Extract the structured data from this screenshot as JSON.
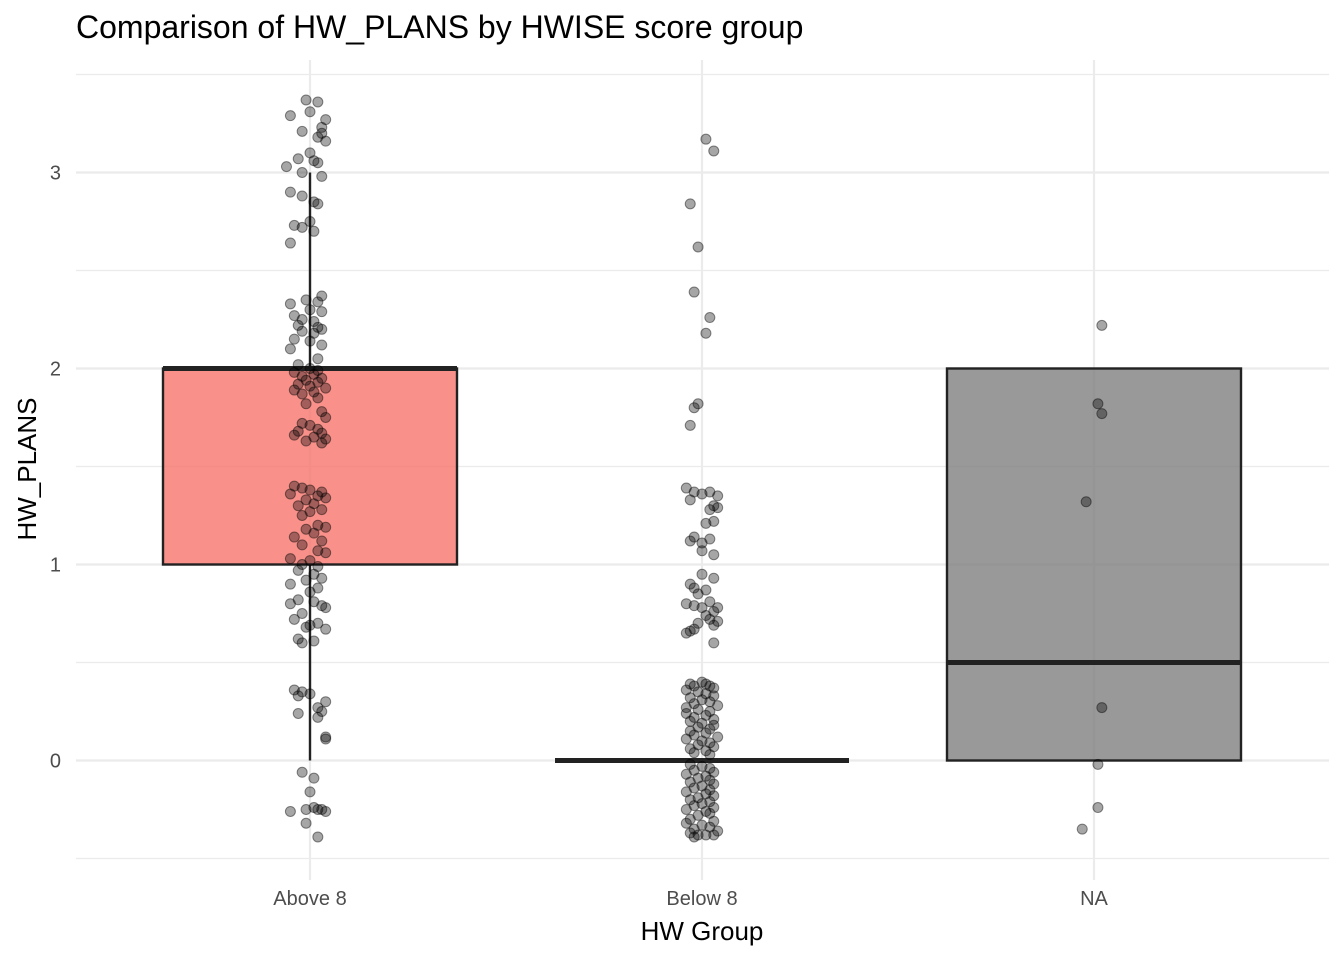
{
  "chart_data": {
    "type": "boxplot",
    "title": "Comparison of HW_PLANS by HWISE score group",
    "xlabel": "HW Group",
    "ylabel": "HW_PLANS",
    "categories": [
      "Above 8",
      "Below 8",
      "NA"
    ],
    "ylim": [
      -0.5,
      3.5
    ],
    "yticks": [
      0,
      1,
      2,
      3
    ],
    "y_tick_labels": [
      "0",
      "1",
      "2",
      "3"
    ],
    "grid": true,
    "legend": "none",
    "boxes": [
      {
        "category": "Above 8",
        "q1": 1,
        "median": 2,
        "q3": 2,
        "whisker_low": 0,
        "whisker_high": 3,
        "fill": "#f8766d"
      },
      {
        "category": "Below 8",
        "q1": 0,
        "median": 0,
        "q3": 0,
        "whisker_low": 0,
        "whisker_high": 0,
        "fill": "#00bfc4"
      },
      {
        "category": "NA",
        "q1": 0,
        "median": 0.5,
        "q3": 2,
        "whisker_low": 0,
        "whisker_high": 2,
        "fill": "#7f7f7f"
      }
    ],
    "jitter_points": [
      {
        "category": "Above 8",
        "points": [
          [
            -0.01,
            3.37
          ],
          [
            0.02,
            3.36
          ],
          [
            -0.05,
            3.29
          ],
          [
            0.0,
            3.31
          ],
          [
            0.04,
            3.27
          ],
          [
            0.03,
            3.23
          ],
          [
            -0.02,
            3.21
          ],
          [
            0.03,
            3.2
          ],
          [
            0.04,
            3.16
          ],
          [
            0.02,
            3.18
          ],
          [
            0.0,
            3.1
          ],
          [
            -0.03,
            3.07
          ],
          [
            0.02,
            3.05
          ],
          [
            -0.06,
            3.03
          ],
          [
            0.01,
            3.06
          ],
          [
            -0.02,
            3.0
          ],
          [
            0.03,
            2.98
          ],
          [
            -0.05,
            2.9
          ],
          [
            -0.02,
            2.88
          ],
          [
            0.01,
            2.85
          ],
          [
            0.02,
            2.84
          ],
          [
            -0.04,
            2.73
          ],
          [
            -0.02,
            2.72
          ],
          [
            0.0,
            2.75
          ],
          [
            0.01,
            2.7
          ],
          [
            -0.05,
            2.64
          ],
          [
            0.03,
            2.37
          ],
          [
            -0.01,
            2.35
          ],
          [
            0.02,
            2.34
          ],
          [
            -0.05,
            2.33
          ],
          [
            0.0,
            2.3
          ],
          [
            0.03,
            2.29
          ],
          [
            -0.04,
            2.27
          ],
          [
            -0.02,
            2.25
          ],
          [
            0.01,
            2.24
          ],
          [
            -0.03,
            2.22
          ],
          [
            0.02,
            2.21
          ],
          [
            0.03,
            2.2
          ],
          [
            -0.02,
            2.19
          ],
          [
            0.01,
            2.18
          ],
          [
            -0.04,
            2.15
          ],
          [
            0.0,
            2.14
          ],
          [
            0.03,
            2.12
          ],
          [
            -0.05,
            2.1
          ],
          [
            0.02,
            2.05
          ],
          [
            -0.03,
            2.02
          ],
          [
            0.0,
            2.0
          ],
          [
            0.02,
            1.99
          ],
          [
            -0.04,
            1.98
          ],
          [
            0.01,
            1.97
          ],
          [
            -0.02,
            1.96
          ],
          [
            0.03,
            1.95
          ],
          [
            -0.01,
            1.94
          ],
          [
            0.02,
            1.93
          ],
          [
            -0.03,
            1.92
          ],
          [
            0.0,
            1.91
          ],
          [
            0.04,
            1.9
          ],
          [
            -0.04,
            1.89
          ],
          [
            0.01,
            1.88
          ],
          [
            -0.02,
            1.87
          ],
          [
            0.02,
            1.85
          ],
          [
            -0.01,
            1.82
          ],
          [
            0.03,
            1.78
          ],
          [
            0.04,
            1.75
          ],
          [
            -0.02,
            1.72
          ],
          [
            0.0,
            1.71
          ],
          [
            0.02,
            1.69
          ],
          [
            -0.03,
            1.68
          ],
          [
            0.03,
            1.67
          ],
          [
            -0.04,
            1.66
          ],
          [
            0.01,
            1.65
          ],
          [
            0.04,
            1.64
          ],
          [
            -0.01,
            1.63
          ],
          [
            0.03,
            1.62
          ],
          [
            -0.04,
            1.4
          ],
          [
            -0.02,
            1.39
          ],
          [
            0.0,
            1.38
          ],
          [
            0.03,
            1.37
          ],
          [
            -0.05,
            1.36
          ],
          [
            0.02,
            1.35
          ],
          [
            0.04,
            1.34
          ],
          [
            -0.01,
            1.33
          ],
          [
            0.01,
            1.31
          ],
          [
            -0.03,
            1.3
          ],
          [
            0.03,
            1.28
          ],
          [
            0.0,
            1.27
          ],
          [
            -0.02,
            1.25
          ],
          [
            0.02,
            1.2
          ],
          [
            0.04,
            1.19
          ],
          [
            -0.01,
            1.18
          ],
          [
            0.01,
            1.16
          ],
          [
            -0.04,
            1.14
          ],
          [
            0.03,
            1.12
          ],
          [
            -0.02,
            1.1
          ],
          [
            0.02,
            1.07
          ],
          [
            0.04,
            1.06
          ],
          [
            -0.05,
            1.03
          ],
          [
            0.0,
            1.02
          ],
          [
            -0.02,
            1.0
          ],
          [
            0.02,
            0.99
          ],
          [
            -0.03,
            0.97
          ],
          [
            0.01,
            0.95
          ],
          [
            0.03,
            0.93
          ],
          [
            -0.01,
            0.92
          ],
          [
            -0.05,
            0.9
          ],
          [
            0.02,
            0.88
          ],
          [
            0.0,
            0.86
          ],
          [
            -0.03,
            0.82
          ],
          [
            0.01,
            0.81
          ],
          [
            -0.05,
            0.8
          ],
          [
            0.03,
            0.79
          ],
          [
            0.04,
            0.78
          ],
          [
            -0.02,
            0.75
          ],
          [
            -0.04,
            0.72
          ],
          [
            0.02,
            0.7
          ],
          [
            0.0,
            0.69
          ],
          [
            -0.01,
            0.68
          ],
          [
            0.04,
            0.67
          ],
          [
            -0.03,
            0.62
          ],
          [
            0.01,
            0.61
          ],
          [
            -0.02,
            0.6
          ],
          [
            -0.04,
            0.36
          ],
          [
            -0.02,
            0.35
          ],
          [
            0.0,
            0.34
          ],
          [
            -0.03,
            0.33
          ],
          [
            0.04,
            0.3
          ],
          [
            0.02,
            0.27
          ],
          [
            0.03,
            0.25
          ],
          [
            -0.03,
            0.24
          ],
          [
            0.02,
            0.22
          ],
          [
            0.04,
            0.12
          ],
          [
            0.04,
            0.11
          ],
          [
            -0.02,
            -0.06
          ],
          [
            0.01,
            -0.09
          ],
          [
            0.0,
            -0.16
          ],
          [
            -0.05,
            -0.26
          ],
          [
            0.02,
            -0.25
          ],
          [
            0.03,
            -0.25
          ],
          [
            0.04,
            -0.26
          ],
          [
            0.01,
            -0.24
          ],
          [
            -0.01,
            -0.25
          ],
          [
            -0.01,
            -0.32
          ],
          [
            0.02,
            -0.39
          ]
        ]
      },
      {
        "category": "Below 8",
        "points": [
          [
            0.01,
            3.17
          ],
          [
            0.03,
            3.11
          ],
          [
            -0.03,
            2.84
          ],
          [
            -0.01,
            2.62
          ],
          [
            -0.02,
            2.39
          ],
          [
            0.02,
            2.26
          ],
          [
            0.01,
            2.18
          ],
          [
            -0.01,
            1.82
          ],
          [
            -0.02,
            1.8
          ],
          [
            -0.03,
            1.71
          ],
          [
            -0.04,
            1.39
          ],
          [
            -0.02,
            1.37
          ],
          [
            0.0,
            1.36
          ],
          [
            0.02,
            1.37
          ],
          [
            0.04,
            1.35
          ],
          [
            -0.03,
            1.33
          ],
          [
            0.03,
            1.3
          ],
          [
            0.02,
            1.28
          ],
          [
            0.04,
            1.29
          ],
          [
            0.01,
            1.21
          ],
          [
            0.03,
            1.22
          ],
          [
            -0.02,
            1.14
          ],
          [
            -0.03,
            1.12
          ],
          [
            0.0,
            1.11
          ],
          [
            0.02,
            1.13
          ],
          [
            0.0,
            1.07
          ],
          [
            0.03,
            1.05
          ],
          [
            0.0,
            0.95
          ],
          [
            0.03,
            0.93
          ],
          [
            -0.03,
            0.9
          ],
          [
            -0.02,
            0.88
          ],
          [
            0.01,
            0.87
          ],
          [
            -0.01,
            0.85
          ],
          [
            0.02,
            0.81
          ],
          [
            -0.04,
            0.8
          ],
          [
            -0.02,
            0.79
          ],
          [
            0.0,
            0.78
          ],
          [
            0.04,
            0.78
          ],
          [
            0.03,
            0.76
          ],
          [
            0.01,
            0.74
          ],
          [
            0.02,
            0.72
          ],
          [
            0.04,
            0.71
          ],
          [
            -0.01,
            0.7
          ],
          [
            0.03,
            0.69
          ],
          [
            -0.03,
            0.66
          ],
          [
            -0.04,
            0.65
          ],
          [
            -0.02,
            0.67
          ],
          [
            0.03,
            0.6
          ],
          [
            -0.03,
            0.39
          ],
          [
            -0.02,
            0.38
          ],
          [
            0.0,
            0.4
          ],
          [
            0.01,
            0.39
          ],
          [
            0.02,
            0.38
          ],
          [
            0.03,
            0.37
          ],
          [
            -0.04,
            0.36
          ],
          [
            -0.01,
            0.35
          ],
          [
            0.01,
            0.34
          ],
          [
            0.03,
            0.33
          ],
          [
            -0.03,
            0.32
          ],
          [
            0.0,
            0.31
          ],
          [
            0.02,
            0.3
          ],
          [
            -0.02,
            0.29
          ],
          [
            0.04,
            0.28
          ],
          [
            -0.04,
            0.27
          ],
          [
            -0.01,
            0.26
          ],
          [
            0.02,
            0.25
          ],
          [
            -0.04,
            0.24
          ],
          [
            0.01,
            0.23
          ],
          [
            -0.02,
            0.22
          ],
          [
            0.03,
            0.21
          ],
          [
            -0.03,
            0.2
          ],
          [
            0.0,
            0.19
          ],
          [
            0.03,
            0.18
          ],
          [
            -0.01,
            0.17
          ],
          [
            0.02,
            0.16
          ],
          [
            -0.03,
            0.15
          ],
          [
            0.01,
            0.14
          ],
          [
            -0.02,
            0.13
          ],
          [
            0.04,
            0.12
          ],
          [
            -0.04,
            0.11
          ],
          [
            0.0,
            0.1
          ],
          [
            0.02,
            0.09
          ],
          [
            -0.01,
            0.08
          ],
          [
            0.03,
            0.07
          ],
          [
            -0.03,
            0.06
          ],
          [
            0.01,
            0.05
          ],
          [
            -0.02,
            0.04
          ],
          [
            0.02,
            0.03
          ],
          [
            -0.03,
            -0.02
          ],
          [
            0.0,
            -0.03
          ],
          [
            0.02,
            -0.04
          ],
          [
            -0.02,
            -0.05
          ],
          [
            0.03,
            -0.06
          ],
          [
            -0.04,
            -0.07
          ],
          [
            0.01,
            -0.08
          ],
          [
            -0.01,
            -0.09
          ],
          [
            0.02,
            -0.1
          ],
          [
            -0.03,
            -0.11
          ],
          [
            0.03,
            -0.12
          ],
          [
            0.0,
            -0.13
          ],
          [
            -0.02,
            -0.14
          ],
          [
            0.02,
            -0.15
          ],
          [
            -0.04,
            -0.16
          ],
          [
            0.01,
            -0.17
          ],
          [
            0.03,
            -0.18
          ],
          [
            -0.01,
            -0.19
          ],
          [
            -0.03,
            -0.2
          ],
          [
            0.02,
            -0.21
          ],
          [
            0.0,
            -0.22
          ],
          [
            -0.02,
            -0.23
          ],
          [
            0.03,
            -0.24
          ],
          [
            -0.04,
            -0.25
          ],
          [
            0.01,
            -0.26
          ],
          [
            0.02,
            -0.27
          ],
          [
            -0.01,
            -0.28
          ],
          [
            -0.03,
            -0.3
          ],
          [
            0.03,
            -0.31
          ],
          [
            -0.04,
            -0.32
          ],
          [
            0.0,
            -0.33
          ],
          [
            0.02,
            -0.34
          ],
          [
            -0.02,
            -0.35
          ],
          [
            0.04,
            -0.36
          ],
          [
            -0.03,
            -0.37
          ],
          [
            0.01,
            -0.38
          ],
          [
            -0.01,
            -0.38
          ],
          [
            0.03,
            -0.38
          ],
          [
            -0.02,
            -0.39
          ]
        ]
      },
      {
        "category": "NA",
        "points": [
          [
            0.02,
            2.22
          ],
          [
            0.01,
            1.82
          ],
          [
            0.02,
            1.77
          ],
          [
            -0.02,
            1.32
          ],
          [
            0.02,
            0.27
          ],
          [
            0.01,
            -0.02
          ],
          [
            0.01,
            -0.24
          ],
          [
            -0.03,
            -0.35
          ]
        ]
      }
    ]
  }
}
